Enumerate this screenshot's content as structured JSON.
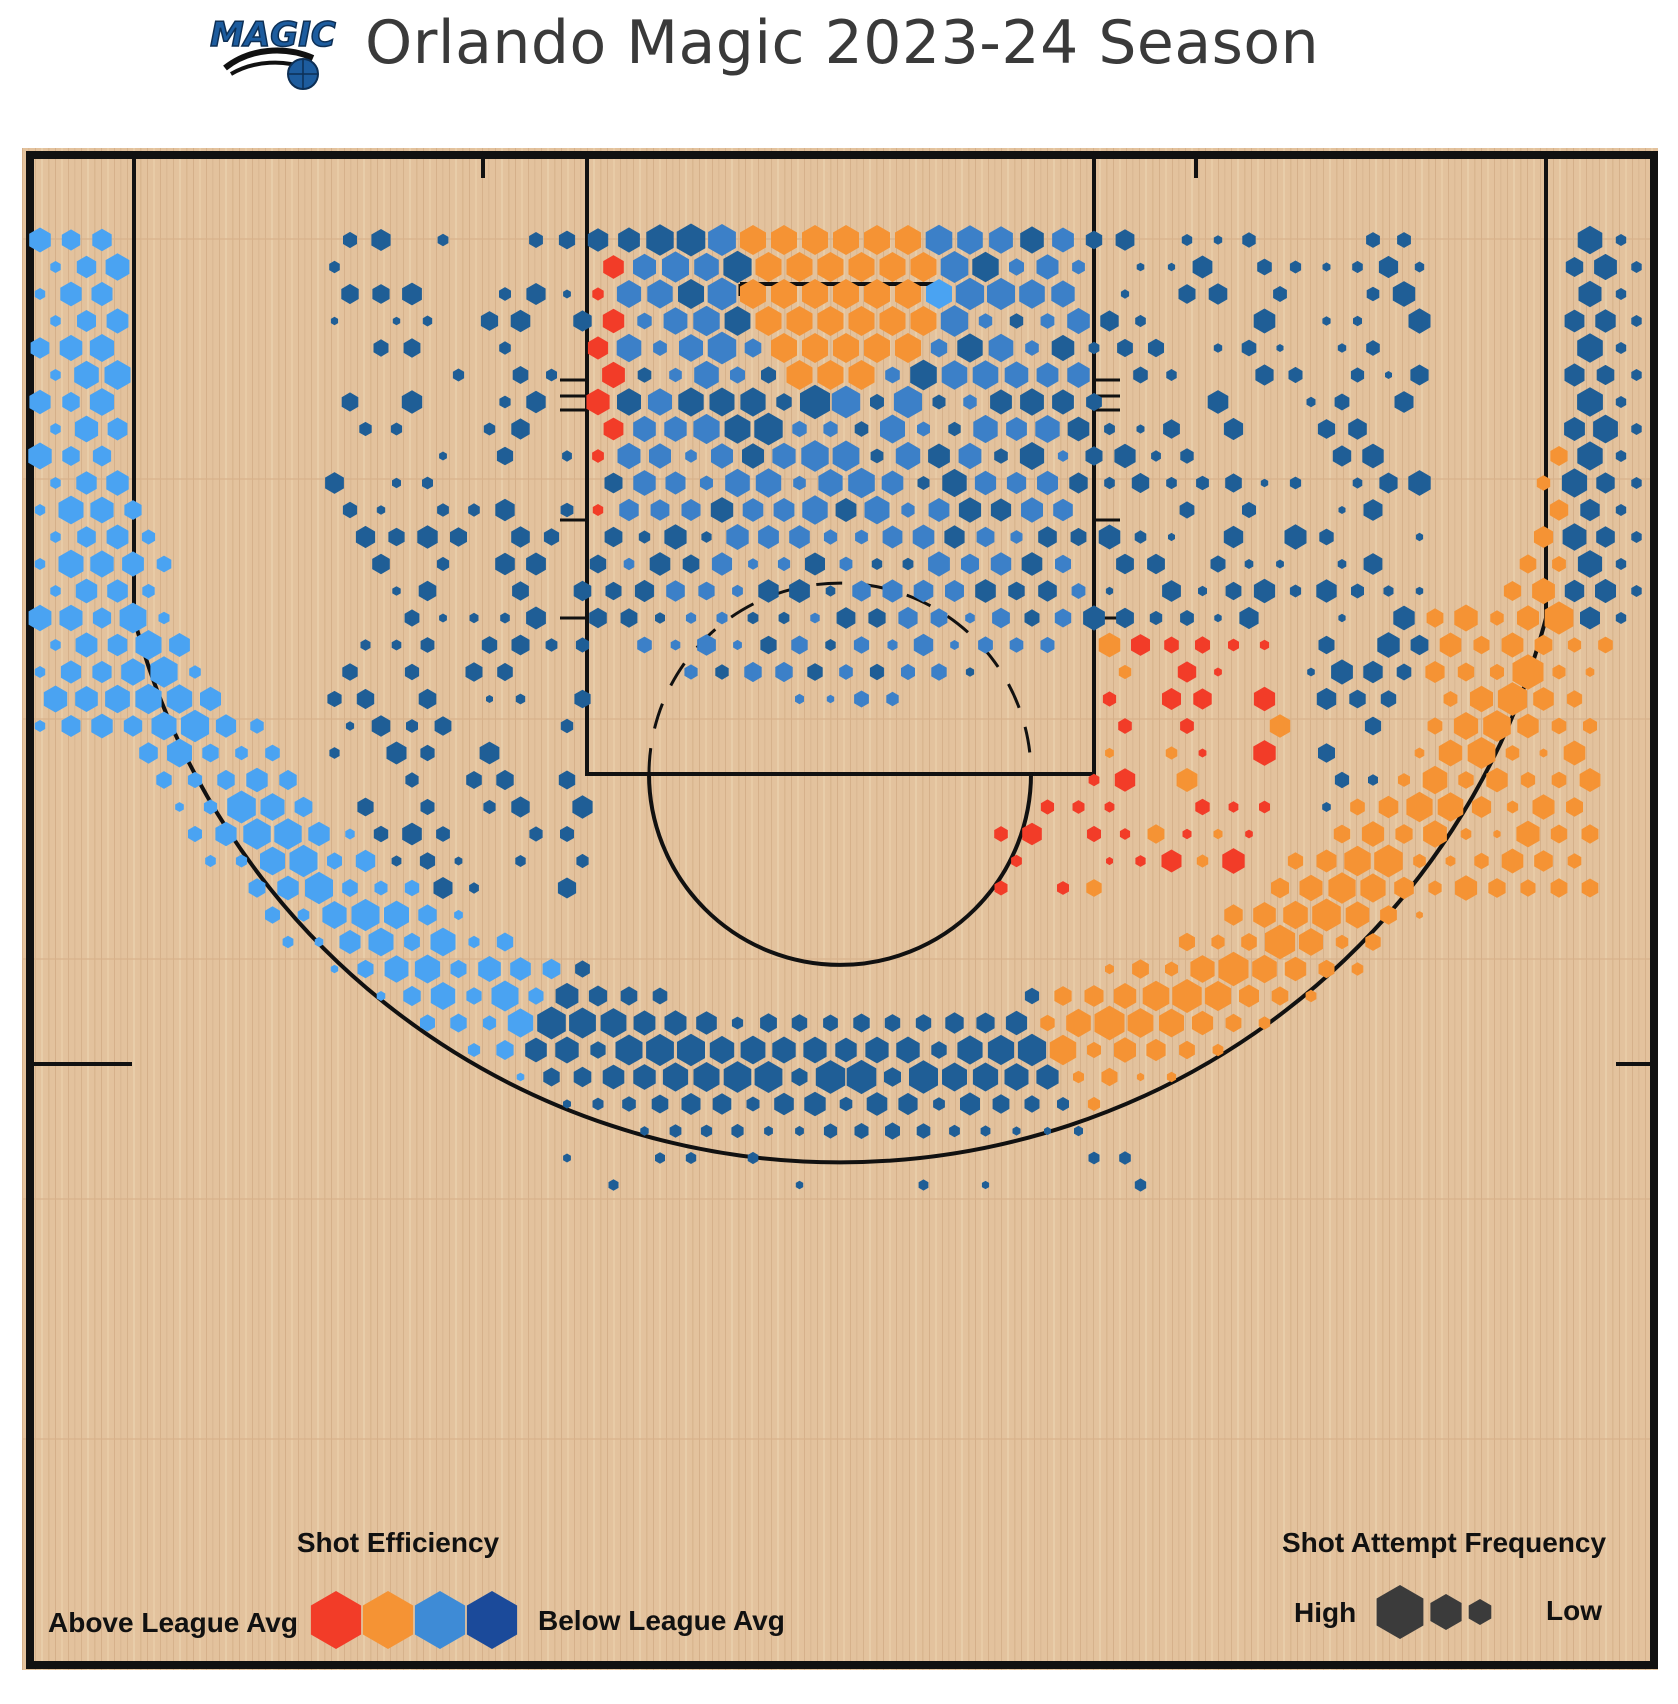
{
  "header": {
    "title": "Orlando Magic 2023-24 Season",
    "logo_text": "MAGIC"
  },
  "colors": {
    "wood": "#e3c29d",
    "wood_dark": "#d2ae86",
    "court_line": "#111111",
    "above_strong": "#f23c28",
    "above": "#f59334",
    "below": "#4aa3f2",
    "below_strong": "#1f5e96",
    "legend_below": "#3e8bd6",
    "legend_below_strong": "#1b4a9a",
    "size_legend": "#3b3b3b",
    "logo_blue": "#1d5c9e"
  },
  "legend": {
    "efficiency_title": "Shot Efficiency",
    "above_label": "Above League Avg",
    "below_label": "Below League Avg",
    "frequency_title": "Shot Attempt Frequency",
    "high_label": "High",
    "low_label": "Low"
  },
  "chart_data": {
    "type": "hexbin",
    "title": "Orlando Magic 2023-24 Season",
    "color_scale": [
      "Above League Avg",
      "Below League Avg"
    ],
    "size_scale": [
      "High",
      "Low"
    ],
    "zones": [
      {
        "zone": "Restricted area",
        "efficiency": "above",
        "frequency": "high"
      },
      {
        "zone": "Paint (non-RA)",
        "efficiency": "below",
        "frequency": "high"
      },
      {
        "zone": "Left corner 3",
        "efficiency": "below",
        "frequency": "high"
      },
      {
        "zone": "Right corner 3",
        "efficiency": "below_strong",
        "frequency": "high"
      },
      {
        "zone": "Left wing 3",
        "efficiency": "below",
        "frequency": "high"
      },
      {
        "zone": "Top of key 3",
        "efficiency": "below_strong",
        "frequency": "high"
      },
      {
        "zone": "Right wing 3",
        "efficiency": "above",
        "frequency": "high"
      },
      {
        "zone": "Left mid-range",
        "efficiency": "below_strong",
        "frequency": "low"
      },
      {
        "zone": "Right mid-range (elbow)",
        "efficiency": "above_strong",
        "frequency": "low"
      },
      {
        "zone": "Deep 3",
        "efficiency": "below_strong",
        "frequency": "low"
      }
    ]
  }
}
